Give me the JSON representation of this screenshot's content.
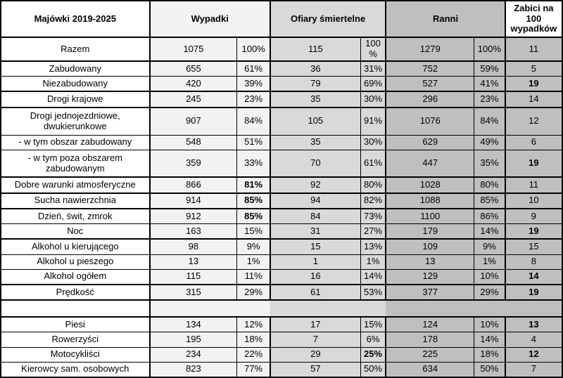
{
  "colors": {
    "border": "#000000",
    "label_bg": "#ffffff",
    "wypadki_bg": "#f2f2f2",
    "ofiary_bg": "#d9d9d9",
    "ranni_bg": "#bfbfbf",
    "zabici_bg": "#bfbfbf",
    "zabici_header_bg": "#ffffff"
  },
  "header": {
    "title": "Majówki 2019-2025",
    "groups": {
      "wypadki": "Wypadki",
      "ofiary": "Ofiary śmiertelne",
      "ranni": "Ranni",
      "zabici": "Zabici na 100 wypadków"
    }
  },
  "columns": [
    "wypadki_n",
    "wypadki_pct",
    "ofiary_n",
    "ofiary_pct",
    "ranni_n",
    "ranni_pct",
    "zabici_na_100"
  ],
  "rows": [
    {
      "type": "total",
      "label": "Razem",
      "values": [
        "1075",
        "100%",
        "115",
        "100 %",
        "1279",
        "100%",
        "11"
      ],
      "bold": [],
      "thick": true
    },
    {
      "type": "data",
      "label": "Zabudowany",
      "values": [
        "655",
        "61%",
        "36",
        "31%",
        "752",
        "59%",
        "5"
      ],
      "bold": [],
      "thick": false
    },
    {
      "type": "data",
      "label": "Niezabudowany",
      "values": [
        "420",
        "39%",
        "79",
        "69%",
        "527",
        "41%",
        "19"
      ],
      "bold": [
        6
      ],
      "thick": true
    },
    {
      "type": "data",
      "label": "Drogi krajowe",
      "values": [
        "245",
        "23%",
        "35",
        "30%",
        "296",
        "23%",
        "14"
      ],
      "bold": [],
      "thick": true
    },
    {
      "type": "data",
      "label": "Drogi jednojezdniowe, dwukierunkowe",
      "values": [
        "907",
        "84%",
        "105",
        "91%",
        "1076",
        "84%",
        "12"
      ],
      "bold": [],
      "thick": false
    },
    {
      "type": "data",
      "label": "- w tym obszar zabudowany",
      "values": [
        "548",
        "51%",
        "35",
        "30%",
        "629",
        "49%",
        "6"
      ],
      "bold": [],
      "thick": false
    },
    {
      "type": "data",
      "label": "- w tym poza obszarem zabudowanym",
      "values": [
        "359",
        "33%",
        "70",
        "61%",
        "447",
        "35%",
        "19"
      ],
      "bold": [
        6
      ],
      "thick": true
    },
    {
      "type": "data",
      "label": "Dobre warunki atmosferyczne",
      "values": [
        "866",
        "81%",
        "92",
        "80%",
        "1028",
        "80%",
        "11"
      ],
      "bold": [
        1
      ],
      "thick": true
    },
    {
      "type": "data",
      "label": "Sucha nawierzchnia",
      "values": [
        "914",
        "85%",
        "94",
        "82%",
        "1088",
        "85%",
        "10"
      ],
      "bold": [
        1
      ],
      "thick": true
    },
    {
      "type": "data",
      "label": "Dzień, świt, zmrok",
      "values": [
        "912",
        "85%",
        "84",
        "73%",
        "1100",
        "86%",
        "9"
      ],
      "bold": [
        1
      ],
      "thick": false
    },
    {
      "type": "data",
      "label": "Noc",
      "values": [
        "163",
        "15%",
        "31",
        "27%",
        "179",
        "14%",
        "19"
      ],
      "bold": [
        6
      ],
      "thick": true
    },
    {
      "type": "data",
      "label": "Alkohol u kierującego",
      "values": [
        "98",
        "9%",
        "15",
        "13%",
        "109",
        "9%",
        "15"
      ],
      "bold": [],
      "thick": false
    },
    {
      "type": "data",
      "label": "Alkohol u pieszego",
      "values": [
        "13",
        "1%",
        "1",
        "1%",
        "13",
        "1%",
        "8"
      ],
      "bold": [],
      "thick": false
    },
    {
      "type": "data",
      "label": "Alkohol ogółem",
      "values": [
        "115",
        "11%",
        "16",
        "14%",
        "129",
        "10%",
        "14"
      ],
      "bold": [
        6
      ],
      "thick": true
    },
    {
      "type": "data",
      "label": "Prędkość",
      "values": [
        "315",
        "29%",
        "61",
        "53%",
        "377",
        "29%",
        "19"
      ],
      "bold": [
        6
      ],
      "thick": true
    },
    {
      "type": "separator",
      "label": "",
      "values": [],
      "bold": [],
      "thick": true
    },
    {
      "type": "data",
      "label": "Piesi",
      "values": [
        "134",
        "12%",
        "17",
        "15%",
        "124",
        "10%",
        "13"
      ],
      "bold": [
        6
      ],
      "thick": false
    },
    {
      "type": "data",
      "label": "Rowerzyści",
      "values": [
        "195",
        "18%",
        "7",
        "6%",
        "178",
        "14%",
        "4"
      ],
      "bold": [],
      "thick": false
    },
    {
      "type": "data",
      "label": "Motocykliści",
      "values": [
        "234",
        "22%",
        "29",
        "25%",
        "225",
        "18%",
        "12"
      ],
      "bold": [
        3,
        6
      ],
      "thick": false
    },
    {
      "type": "data",
      "label": "Kierowcy sam. osobowych",
      "values": [
        "823",
        "77%",
        "57",
        "50%",
        "634",
        "50%",
        "7"
      ],
      "bold": [],
      "thick": false
    }
  ]
}
